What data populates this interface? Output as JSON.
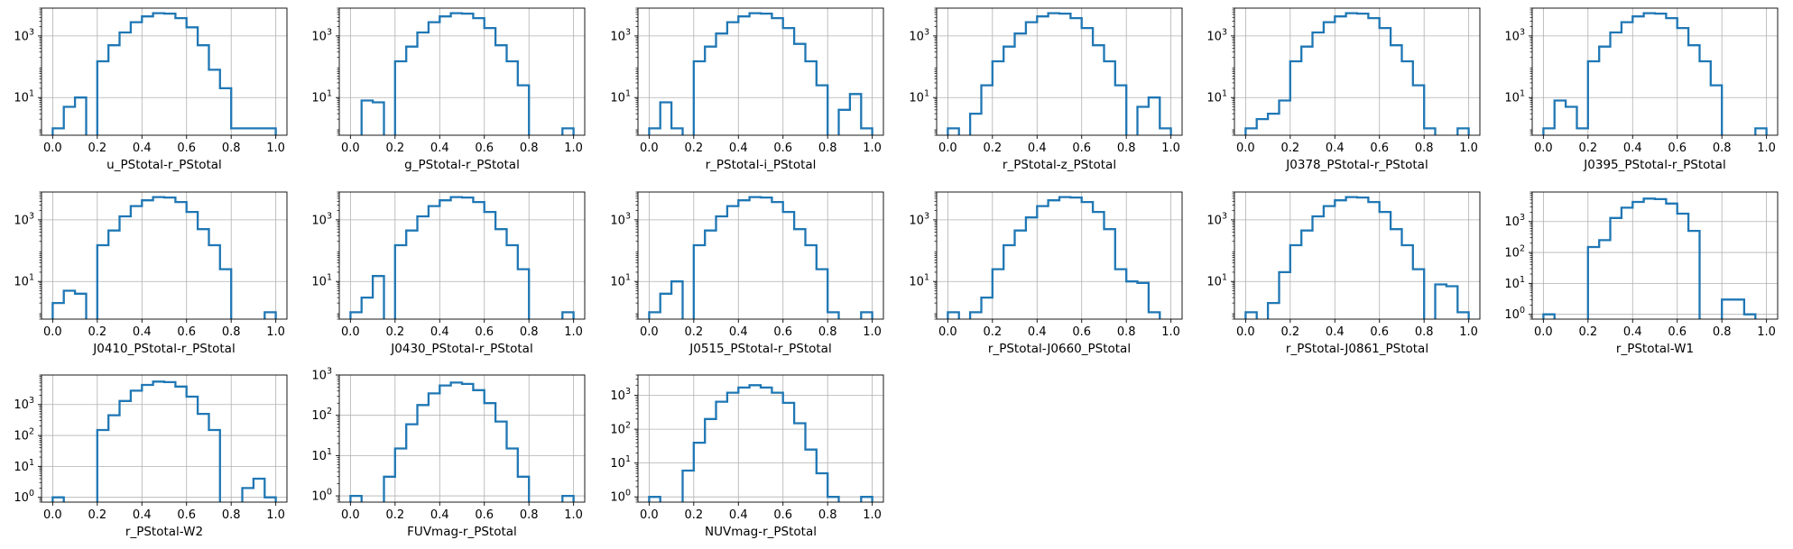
{
  "figure": {
    "colors": {
      "line": "#1f77b4",
      "grid": "#b0b0b0",
      "axes": "#000000",
      "background": "#ffffff"
    }
  },
  "chart_data": [
    {
      "type": "line",
      "drawstyle": "steps",
      "xlabel": "u_PStotal-r_PStotal",
      "yscale": "log",
      "grid": true,
      "x": [
        0.0,
        0.05,
        0.1,
        0.15,
        0.2,
        0.25,
        0.3,
        0.35,
        0.4,
        0.45,
        0.5,
        0.55,
        0.6,
        0.65,
        0.7,
        0.75,
        0.8,
        0.85,
        0.9,
        0.95
      ],
      "values": [
        1,
        5,
        10,
        0,
        150,
        500,
        1300,
        2800,
        4300,
        5500,
        5300,
        3800,
        1900,
        500,
        80,
        20,
        1,
        1,
        1,
        1
      ],
      "xticks": [
        "0.0",
        "0.2",
        "0.4",
        "0.6",
        "0.8",
        "1.0"
      ],
      "yticks": [
        10,
        1000
      ],
      "ylim": [
        0.6,
        8000
      ]
    },
    {
      "type": "line",
      "drawstyle": "steps",
      "xlabel": "g_PStotal-r_PStotal",
      "yscale": "log",
      "grid": true,
      "x": [
        0.0,
        0.05,
        0.1,
        0.15,
        0.2,
        0.25,
        0.3,
        0.35,
        0.4,
        0.45,
        0.5,
        0.55,
        0.6,
        0.65,
        0.7,
        0.75,
        0.8,
        0.85,
        0.9,
        0.95
      ],
      "values": [
        0,
        8,
        7,
        0,
        150,
        450,
        1300,
        2800,
        4300,
        5500,
        5300,
        3800,
        1800,
        500,
        150,
        25,
        0,
        0,
        0,
        1
      ],
      "xticks": [
        "0.0",
        "0.2",
        "0.4",
        "0.6",
        "0.8",
        "1.0"
      ],
      "yticks": [
        10,
        1000
      ],
      "ylim": [
        0.6,
        8000
      ]
    },
    {
      "type": "line",
      "drawstyle": "steps",
      "xlabel": "r_PStotal-i_PStotal",
      "yscale": "log",
      "grid": true,
      "x": [
        0.0,
        0.05,
        0.1,
        0.15,
        0.2,
        0.25,
        0.3,
        0.35,
        0.4,
        0.45,
        0.5,
        0.55,
        0.6,
        0.65,
        0.7,
        0.75,
        0.8,
        0.85,
        0.9,
        0.95
      ],
      "values": [
        1,
        7,
        1,
        0,
        150,
        450,
        1200,
        2800,
        4300,
        5500,
        5300,
        3800,
        1800,
        550,
        150,
        25,
        0,
        4,
        13,
        1
      ],
      "xticks": [
        "0.0",
        "0.2",
        "0.4",
        "0.6",
        "0.8",
        "1.0"
      ],
      "yticks": [
        10,
        1000
      ],
      "ylim": [
        0.6,
        8000
      ]
    },
    {
      "type": "line",
      "drawstyle": "steps",
      "xlabel": "r_PStotal-z_PStotal",
      "yscale": "log",
      "grid": true,
      "x": [
        0.0,
        0.05,
        0.1,
        0.15,
        0.2,
        0.25,
        0.3,
        0.35,
        0.4,
        0.45,
        0.5,
        0.55,
        0.6,
        0.65,
        0.7,
        0.75,
        0.8,
        0.85,
        0.9,
        0.95
      ],
      "values": [
        1,
        0,
        3,
        25,
        150,
        450,
        1200,
        2800,
        4300,
        5500,
        5300,
        3800,
        1800,
        500,
        150,
        25,
        0,
        5,
        10,
        1
      ],
      "xticks": [
        "0.0",
        "0.2",
        "0.4",
        "0.6",
        "0.8",
        "1.0"
      ],
      "yticks": [
        10,
        1000
      ],
      "ylim": [
        0.6,
        8000
      ]
    },
    {
      "type": "line",
      "drawstyle": "steps",
      "xlabel": "J0378_PStotal-r_PStotal",
      "yscale": "log",
      "grid": true,
      "x": [
        0.0,
        0.05,
        0.1,
        0.15,
        0.2,
        0.25,
        0.3,
        0.35,
        0.4,
        0.45,
        0.5,
        0.55,
        0.6,
        0.65,
        0.7,
        0.75,
        0.8,
        0.85,
        0.9,
        0.95
      ],
      "values": [
        1,
        2,
        3,
        8,
        150,
        450,
        1300,
        2800,
        4300,
        5500,
        5300,
        3800,
        1800,
        500,
        150,
        25,
        1,
        0,
        0,
        1
      ],
      "xticks": [
        "0.0",
        "0.2",
        "0.4",
        "0.6",
        "0.8",
        "1.0"
      ],
      "yticks": [
        10,
        1000
      ],
      "ylim": [
        0.6,
        8000
      ]
    },
    {
      "type": "line",
      "drawstyle": "steps",
      "xlabel": "J0395_PStotal-r_PStotal",
      "yscale": "log",
      "grid": true,
      "x": [
        0.0,
        0.05,
        0.1,
        0.15,
        0.2,
        0.25,
        0.3,
        0.35,
        0.4,
        0.45,
        0.5,
        0.55,
        0.6,
        0.65,
        0.7,
        0.75,
        0.8,
        0.85,
        0.9,
        0.95
      ],
      "values": [
        1,
        8,
        5,
        1,
        150,
        450,
        1300,
        2800,
        4300,
        5500,
        5300,
        3800,
        1800,
        500,
        150,
        25,
        0,
        0,
        0,
        1
      ],
      "xticks": [
        "0.0",
        "0.2",
        "0.4",
        "0.6",
        "0.8",
        "1.0"
      ],
      "yticks": [
        10,
        1000
      ],
      "ylim": [
        0.6,
        8000
      ]
    },
    {
      "type": "line",
      "drawstyle": "steps",
      "xlabel": "J0410_PStotal-r_PStotal",
      "yscale": "log",
      "grid": true,
      "x": [
        0.0,
        0.05,
        0.1,
        0.15,
        0.2,
        0.25,
        0.3,
        0.35,
        0.4,
        0.45,
        0.5,
        0.55,
        0.6,
        0.65,
        0.7,
        0.75,
        0.8,
        0.85,
        0.9,
        0.95
      ],
      "values": [
        2,
        5,
        4,
        0,
        150,
        450,
        1300,
        2800,
        4300,
        5500,
        5300,
        3800,
        1800,
        500,
        150,
        25,
        0,
        0,
        0,
        1
      ],
      "xticks": [
        "0.0",
        "0.2",
        "0.4",
        "0.6",
        "0.8",
        "1.0"
      ],
      "yticks": [
        10,
        1000
      ],
      "ylim": [
        0.6,
        8000
      ]
    },
    {
      "type": "line",
      "drawstyle": "steps",
      "xlabel": "J0430_PStotal-r_PStotal",
      "yscale": "log",
      "grid": true,
      "x": [
        0.0,
        0.05,
        0.1,
        0.15,
        0.2,
        0.25,
        0.3,
        0.35,
        0.4,
        0.45,
        0.5,
        0.55,
        0.6,
        0.65,
        0.7,
        0.75,
        0.8,
        0.85,
        0.9,
        0.95
      ],
      "values": [
        1,
        3,
        15,
        0,
        150,
        450,
        1300,
        2800,
        4300,
        5500,
        5300,
        3800,
        1800,
        500,
        150,
        25,
        0,
        0,
        0,
        1
      ],
      "xticks": [
        "0.0",
        "0.2",
        "0.4",
        "0.6",
        "0.8",
        "1.0"
      ],
      "yticks": [
        10,
        1000
      ],
      "ylim": [
        0.6,
        8000
      ]
    },
    {
      "type": "line",
      "drawstyle": "steps",
      "xlabel": "J0515_PStotal-r_PStotal",
      "yscale": "log",
      "grid": true,
      "x": [
        0.0,
        0.05,
        0.1,
        0.15,
        0.2,
        0.25,
        0.3,
        0.35,
        0.4,
        0.45,
        0.5,
        0.55,
        0.6,
        0.65,
        0.7,
        0.75,
        0.8,
        0.85,
        0.9,
        0.95
      ],
      "values": [
        1,
        4,
        10,
        0,
        150,
        450,
        1300,
        2800,
        4300,
        5500,
        5300,
        3800,
        1800,
        500,
        150,
        25,
        1,
        0,
        0,
        1
      ],
      "xticks": [
        "0.0",
        "0.2",
        "0.4",
        "0.6",
        "0.8",
        "1.0"
      ],
      "yticks": [
        10,
        1000
      ],
      "ylim": [
        0.6,
        8000
      ]
    },
    {
      "type": "line",
      "drawstyle": "steps",
      "xlabel": "r_PStotal-J0660_PStotal",
      "yscale": "log",
      "grid": true,
      "x": [
        0.0,
        0.05,
        0.1,
        0.15,
        0.2,
        0.25,
        0.3,
        0.35,
        0.4,
        0.45,
        0.5,
        0.55,
        0.6,
        0.65,
        0.7,
        0.75,
        0.8,
        0.85,
        0.9,
        0.95
      ],
      "values": [
        1,
        0,
        1,
        3,
        25,
        150,
        450,
        1200,
        2800,
        4300,
        5500,
        5300,
        3800,
        1800,
        500,
        25,
        10,
        9,
        1,
        0
      ],
      "xticks": [
        "0.0",
        "0.2",
        "0.4",
        "0.6",
        "0.8",
        "1.0"
      ],
      "yticks": [
        10,
        1000
      ],
      "ylim": [
        0.6,
        8000
      ]
    },
    {
      "type": "line",
      "drawstyle": "steps",
      "xlabel": "r_PStotal-J0861_PStotal",
      "yscale": "log",
      "grid": true,
      "x": [
        0.0,
        0.05,
        0.1,
        0.15,
        0.2,
        0.25,
        0.3,
        0.35,
        0.4,
        0.45,
        0.5,
        0.55,
        0.6,
        0.65,
        0.7,
        0.75,
        0.8,
        0.85,
        0.9,
        0.95
      ],
      "values": [
        1,
        0,
        2,
        20,
        150,
        450,
        1300,
        2800,
        4300,
        5500,
        5300,
        3800,
        1800,
        500,
        150,
        25,
        0,
        8,
        7,
        1
      ],
      "xticks": [
        "0.0",
        "0.2",
        "0.4",
        "0.6",
        "0.8",
        "1.0"
      ],
      "yticks": [
        10,
        1000
      ],
      "ylim": [
        0.6,
        8000
      ]
    },
    {
      "type": "line",
      "drawstyle": "steps",
      "xlabel": "r_PStotal-W1",
      "yscale": "log",
      "grid": true,
      "x": [
        0.0,
        0.05,
        0.1,
        0.15,
        0.2,
        0.25,
        0.3,
        0.35,
        0.4,
        0.45,
        0.5,
        0.55,
        0.6,
        0.65,
        0.7,
        0.75,
        0.8,
        0.85,
        0.9,
        0.95
      ],
      "values": [
        1,
        0,
        0,
        0,
        150,
        250,
        1300,
        2800,
        4300,
        5500,
        5300,
        3800,
        1800,
        500,
        0,
        0,
        3,
        3,
        1,
        0
      ],
      "xticks": [
        "0.0",
        "0.2",
        "0.4",
        "0.6",
        "0.8",
        "1.0"
      ],
      "yticks": [
        1,
        10,
        100,
        1000
      ],
      "ylim": [
        0.7,
        9000
      ]
    },
    {
      "type": "line",
      "drawstyle": "steps",
      "xlabel": "r_PStotal-W2",
      "yscale": "log",
      "grid": true,
      "x": [
        0.0,
        0.05,
        0.1,
        0.15,
        0.2,
        0.25,
        0.3,
        0.35,
        0.4,
        0.45,
        0.5,
        0.55,
        0.6,
        0.65,
        0.7,
        0.75,
        0.8,
        0.85,
        0.9,
        0.95
      ],
      "values": [
        1,
        0,
        0,
        0,
        150,
        450,
        1300,
        2800,
        4300,
        5500,
        5300,
        3800,
        1800,
        500,
        150,
        0,
        0,
        2,
        4,
        1
      ],
      "xticks": [
        "0.0",
        "0.2",
        "0.4",
        "0.6",
        "0.8",
        "1.0"
      ],
      "yticks": [
        1,
        10,
        100,
        1000
      ],
      "ylim": [
        0.7,
        9000
      ]
    },
    {
      "type": "line",
      "drawstyle": "steps",
      "xlabel": "FUVmag-r_PStotal",
      "yscale": "log",
      "grid": true,
      "x": [
        0.0,
        0.05,
        0.1,
        0.15,
        0.2,
        0.25,
        0.3,
        0.35,
        0.4,
        0.45,
        0.5,
        0.55,
        0.6,
        0.65,
        0.7,
        0.75,
        0.8,
        0.85,
        0.9,
        0.95
      ],
      "values": [
        1,
        0,
        0,
        3,
        15,
        60,
        180,
        350,
        550,
        650,
        600,
        420,
        200,
        70,
        15,
        3,
        0,
        0,
        0,
        1
      ],
      "xticks": [
        "0.0",
        "0.2",
        "0.4",
        "0.6",
        "0.8",
        "1.0"
      ],
      "yticks": [
        1,
        10,
        100,
        1000
      ],
      "ylim": [
        0.7,
        1000
      ]
    },
    {
      "type": "line",
      "drawstyle": "steps",
      "xlabel": "NUVmag-r_PStotal",
      "yscale": "log",
      "grid": true,
      "x": [
        0.0,
        0.05,
        0.1,
        0.15,
        0.2,
        0.25,
        0.3,
        0.35,
        0.4,
        0.45,
        0.5,
        0.55,
        0.6,
        0.65,
        0.7,
        0.75,
        0.8,
        0.85,
        0.9,
        0.95
      ],
      "values": [
        1,
        0,
        0,
        6,
        40,
        200,
        650,
        1200,
        1700,
        2000,
        1700,
        1200,
        600,
        150,
        25,
        5,
        1,
        0,
        0,
        1
      ],
      "xticks": [
        "0.0",
        "0.2",
        "0.4",
        "0.6",
        "0.8",
        "1.0"
      ],
      "yticks": [
        1,
        10,
        100,
        1000
      ],
      "ylim": [
        0.7,
        4000
      ]
    }
  ]
}
